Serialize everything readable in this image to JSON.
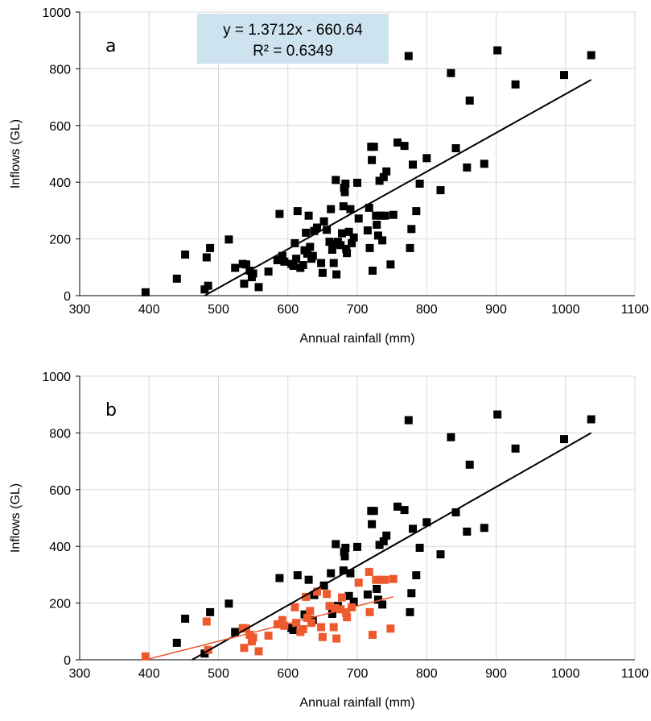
{
  "colors": {
    "series_black": "#000000",
    "series_orange": "#ee5a2e",
    "grid": "#d9d9d9",
    "equation_box": "#cde3ef"
  },
  "chart_data": [
    {
      "type": "scatter",
      "panel_label": "a",
      "xlabel": "Annual rainfall (mm)",
      "ylabel": "Inflows (GL)",
      "xlim": [
        300,
        1100
      ],
      "ylim": [
        0,
        1000
      ],
      "xticks": [
        "300",
        "400",
        "500",
        "600",
        "700",
        "800",
        "900",
        "1000",
        "1100"
      ],
      "yticks": [
        "0",
        "200",
        "400",
        "600",
        "800",
        "1000"
      ],
      "grid": true,
      "equation": "y = 1.3712x - 660.64",
      "r_squared": "R² = 0.6349",
      "series": [
        {
          "color": "#000000",
          "marker": "square",
          "points": [
            [
              395,
              12
            ],
            [
              440,
              60
            ],
            [
              452,
              145
            ],
            [
              480,
              22
            ],
            [
              483,
              135
            ],
            [
              485,
              35
            ],
            [
              488,
              168
            ],
            [
              515,
              198
            ],
            [
              524,
              98
            ],
            [
              535,
              112
            ],
            [
              537,
              42
            ],
            [
              540,
              110
            ],
            [
              545,
              88
            ],
            [
              548,
              65
            ],
            [
              550,
              78
            ],
            [
              558,
              30
            ],
            [
              572,
              85
            ],
            [
              585,
              125
            ],
            [
              588,
              288
            ],
            [
              592,
              140
            ],
            [
              595,
              120
            ],
            [
              605,
              112
            ],
            [
              608,
              105
            ],
            [
              610,
              185
            ],
            [
              612,
              130
            ],
            [
              614,
              298
            ],
            [
              618,
              98
            ],
            [
              622,
              108
            ],
            [
              624,
              160
            ],
            [
              626,
              222
            ],
            [
              628,
              148
            ],
            [
              630,
              282
            ],
            [
              632,
              172
            ],
            [
              634,
              130
            ],
            [
              636,
              140
            ],
            [
              638,
              228
            ],
            [
              642,
              240
            ],
            [
              648,
              115
            ],
            [
              650,
              80
            ],
            [
              652,
              262
            ],
            [
              656,
              232
            ],
            [
              660,
              190
            ],
            [
              662,
              305
            ],
            [
              664,
              162
            ],
            [
              666,
              115
            ],
            [
              668,
              182
            ],
            [
              669,
              408
            ],
            [
              670,
              75
            ],
            [
              672,
              190
            ],
            [
              676,
              178
            ],
            [
              678,
              220
            ],
            [
              680,
              315
            ],
            [
              681,
              380
            ],
            [
              682,
              365
            ],
            [
              683,
              395
            ],
            [
              684,
              165
            ],
            [
              685,
              150
            ],
            [
              688,
              225
            ],
            [
              690,
              305
            ],
            [
              692,
              185
            ],
            [
              695,
              205
            ],
            [
              700,
              398
            ],
            [
              702,
              272
            ],
            [
              715,
              230
            ],
            [
              717,
              310
            ],
            [
              718,
              168
            ],
            [
              720,
              525
            ],
            [
              721,
              478
            ],
            [
              722,
              88
            ],
            [
              724,
              525
            ],
            [
              727,
              282
            ],
            [
              728,
              250
            ],
            [
              730,
              212
            ],
            [
              732,
              405
            ],
            [
              734,
              282
            ],
            [
              736,
              195
            ],
            [
              738,
              418
            ],
            [
              740,
              282
            ],
            [
              742,
              438
            ],
            [
              748,
              110
            ],
            [
              752,
              285
            ],
            [
              758,
              540
            ],
            [
              768,
              528
            ],
            [
              774,
              845
            ],
            [
              776,
              168
            ],
            [
              778,
              235
            ],
            [
              780,
              462
            ],
            [
              785,
              298
            ],
            [
              790,
              395
            ],
            [
              800,
              485
            ],
            [
              820,
              372
            ],
            [
              835,
              785
            ],
            [
              842,
              520
            ],
            [
              858,
              452
            ],
            [
              862,
              688
            ],
            [
              883,
              465
            ],
            [
              902,
              865
            ],
            [
              928,
              745
            ],
            [
              998,
              778
            ],
            [
              1037,
              848
            ]
          ]
        }
      ],
      "trendlines": [
        {
          "color": "#000000",
          "x": [
            480,
            1037
          ],
          "y": [
            -2.5,
            761.3
          ]
        }
      ]
    },
    {
      "type": "scatter",
      "panel_label": "b",
      "xlabel": "Annual rainfall (mm)",
      "ylabel": "Inflows (GL)",
      "xlim": [
        300,
        1100
      ],
      "ylim": [
        0,
        1000
      ],
      "xticks": [
        "300",
        "400",
        "500",
        "600",
        "700",
        "800",
        "900",
        "1000",
        "1100"
      ],
      "yticks": [
        "0",
        "200",
        "400",
        "600",
        "800",
        "1000"
      ],
      "grid": true,
      "series": [
        {
          "color": "#000000",
          "marker": "square",
          "points": [
            [
              440,
              60
            ],
            [
              452,
              145
            ],
            [
              480,
              22
            ],
            [
              488,
              168
            ],
            [
              515,
              198
            ],
            [
              524,
              98
            ],
            [
              588,
              288
            ],
            [
              605,
              112
            ],
            [
              608,
              105
            ],
            [
              614,
              298
            ],
            [
              624,
              160
            ],
            [
              630,
              282
            ],
            [
              636,
              140
            ],
            [
              638,
              228
            ],
            [
              652,
              262
            ],
            [
              662,
              305
            ],
            [
              664,
              162
            ],
            [
              669,
              408
            ],
            [
              672,
              190
            ],
            [
              680,
              315
            ],
            [
              681,
              380
            ],
            [
              682,
              365
            ],
            [
              683,
              395
            ],
            [
              688,
              225
            ],
            [
              690,
              305
            ],
            [
              695,
              205
            ],
            [
              700,
              398
            ],
            [
              715,
              230
            ],
            [
              720,
              525
            ],
            [
              721,
              478
            ],
            [
              724,
              525
            ],
            [
              728,
              250
            ],
            [
              730,
              212
            ],
            [
              732,
              405
            ],
            [
              736,
              195
            ],
            [
              738,
              418
            ],
            [
              742,
              438
            ],
            [
              758,
              540
            ],
            [
              768,
              528
            ],
            [
              774,
              845
            ],
            [
              776,
              168
            ],
            [
              778,
              235
            ],
            [
              780,
              462
            ],
            [
              785,
              298
            ],
            [
              790,
              395
            ],
            [
              800,
              485
            ],
            [
              820,
              372
            ],
            [
              835,
              785
            ],
            [
              842,
              520
            ],
            [
              858,
              452
            ],
            [
              862,
              688
            ],
            [
              883,
              465
            ],
            [
              902,
              865
            ],
            [
              928,
              745
            ],
            [
              998,
              778
            ],
            [
              1037,
              848
            ]
          ]
        },
        {
          "color": "#ee5a2e",
          "marker": "square",
          "points": [
            [
              395,
              12
            ],
            [
              483,
              135
            ],
            [
              485,
              35
            ],
            [
              535,
              112
            ],
            [
              537,
              42
            ],
            [
              540,
              110
            ],
            [
              545,
              88
            ],
            [
              548,
              65
            ],
            [
              550,
              78
            ],
            [
              558,
              30
            ],
            [
              572,
              85
            ],
            [
              585,
              125
            ],
            [
              592,
              140
            ],
            [
              595,
              120
            ],
            [
              610,
              185
            ],
            [
              612,
              130
            ],
            [
              618,
              98
            ],
            [
              622,
              108
            ],
            [
              626,
              222
            ],
            [
              628,
              148
            ],
            [
              632,
              172
            ],
            [
              634,
              130
            ],
            [
              642,
              240
            ],
            [
              648,
              115
            ],
            [
              650,
              80
            ],
            [
              656,
              232
            ],
            [
              660,
              190
            ],
            [
              666,
              115
            ],
            [
              668,
              182
            ],
            [
              670,
              75
            ],
            [
              676,
              178
            ],
            [
              678,
              220
            ],
            [
              684,
              165
            ],
            [
              685,
              150
            ],
            [
              692,
              185
            ],
            [
              702,
              272
            ],
            [
              717,
              310
            ],
            [
              718,
              168
            ],
            [
              722,
              88
            ],
            [
              727,
              282
            ],
            [
              734,
              282
            ],
            [
              740,
              282
            ],
            [
              748,
              110
            ],
            [
              752,
              285
            ]
          ]
        }
      ],
      "trendlines": [
        {
          "color": "#000000",
          "x": [
            462,
            1037
          ],
          "y": [
            -5,
            800
          ]
        },
        {
          "color": "#ee5a2e",
          "x": [
            395,
            752
          ],
          "y": [
            -5,
            222
          ]
        }
      ]
    }
  ]
}
